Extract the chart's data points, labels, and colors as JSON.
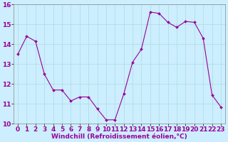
{
  "hours": [
    0,
    1,
    2,
    3,
    4,
    5,
    6,
    7,
    8,
    9,
    10,
    11,
    12,
    13,
    14,
    15,
    16,
    17,
    18,
    19,
    20,
    21,
    22,
    23
  ],
  "windchill": [
    13.5,
    14.4,
    14.15,
    12.5,
    11.7,
    11.7,
    11.15,
    11.35,
    11.35,
    10.75,
    10.2,
    10.2,
    11.5,
    13.1,
    13.75,
    15.62,
    15.55,
    15.1,
    14.85,
    15.15,
    15.1,
    14.3,
    11.45,
    10.85
  ],
  "line_color": "#990099",
  "marker": "D",
  "marker_size": 2,
  "bg_color": "#cceeff",
  "grid_color": "#aadddd",
  "xlabel": "Windchill (Refroidissement éolien,°C)",
  "ylim": [
    10,
    16
  ],
  "xlim": [
    -0.5,
    23.5
  ],
  "yticks": [
    10,
    11,
    12,
    13,
    14,
    15,
    16
  ],
  "xticks": [
    0,
    1,
    2,
    3,
    4,
    5,
    6,
    7,
    8,
    9,
    10,
    11,
    12,
    13,
    14,
    15,
    16,
    17,
    18,
    19,
    20,
    21,
    22,
    23
  ],
  "xlabel_fontsize": 6.5,
  "tick_fontsize": 6.5
}
